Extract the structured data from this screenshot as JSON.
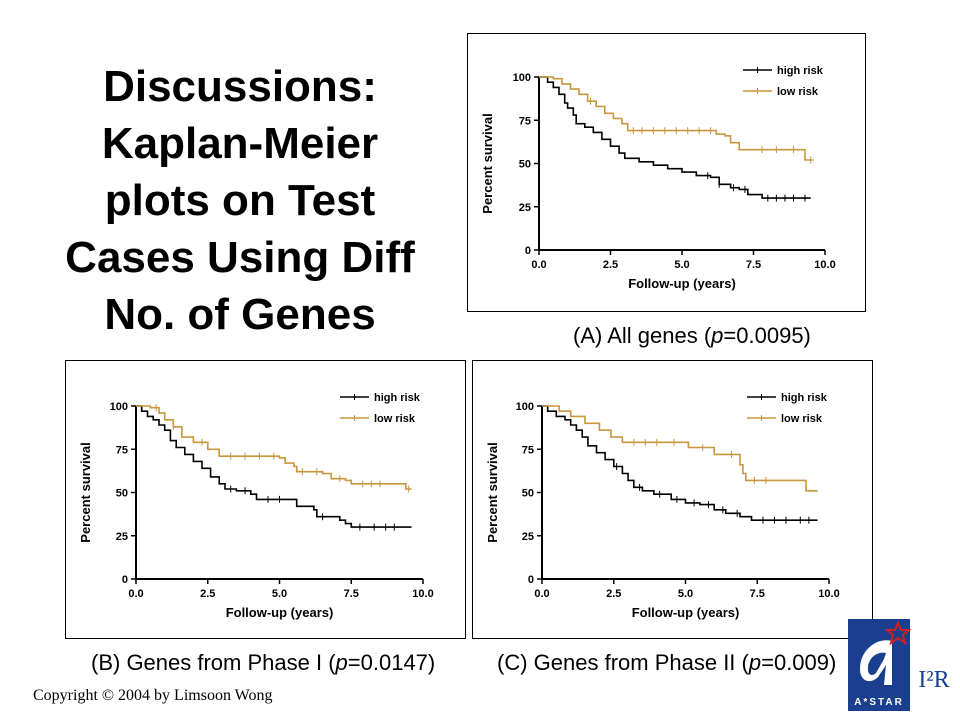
{
  "title_lines": [
    "Discussions:",
    "Kaplan-Meier",
    "plots on Test",
    "Cases Using Diff",
    "No. of Genes"
  ],
  "copyright": "Copyright © 2004 by Limsoon Wong",
  "logo": {
    "wordmark": "A*STAR",
    "institute": "I²R"
  },
  "colors": {
    "high_risk": "#000000",
    "low_risk": "#c8963c",
    "logo_blue": "#1b3f8f",
    "logo_red": "#d02020"
  },
  "chart_data": [
    {
      "type": "line",
      "id": "A",
      "caption": {
        "prefix": "(A) All genes (",
        "p_symbol": "p",
        "p_text": "=0.0095)"
      },
      "xlabel": "Follow-up (years)",
      "ylabel": "Percent survival",
      "xlim": [
        0,
        10
      ],
      "ylim": [
        0,
        100
      ],
      "xticks": [
        "0.0",
        "2.5",
        "5.0",
        "7.5",
        "10.0"
      ],
      "yticks": [
        "0",
        "25",
        "50",
        "75",
        "100"
      ],
      "legend_position": "top-right",
      "series": [
        {
          "name": "high risk",
          "color": "#000000",
          "points": [
            [
              0,
              100
            ],
            [
              0.3,
              97
            ],
            [
              0.5,
              94
            ],
            [
              0.7,
              90
            ],
            [
              0.9,
              85
            ],
            [
              1.0,
              82
            ],
            [
              1.2,
              78
            ],
            [
              1.3,
              73
            ],
            [
              1.6,
              71
            ],
            [
              1.9,
              68
            ],
            [
              2.2,
              64
            ],
            [
              2.5,
              60
            ],
            [
              2.8,
              56
            ],
            [
              3.0,
              53
            ],
            [
              3.5,
              51
            ],
            [
              4.0,
              49
            ],
            [
              4.5,
              47
            ],
            [
              5.0,
              45
            ],
            [
              5.5,
              43
            ],
            [
              6.0,
              42
            ],
            [
              6.3,
              38
            ],
            [
              6.7,
              36
            ],
            [
              7.0,
              35
            ],
            [
              7.3,
              32
            ],
            [
              7.8,
              30
            ],
            [
              9.5,
              30
            ]
          ],
          "censored": [
            5.9,
            6.3,
            6.8,
            7.2,
            8.0,
            8.3,
            8.6,
            8.9,
            9.3
          ]
        },
        {
          "name": "low risk",
          "color": "#c8963c",
          "points": [
            [
              0,
              100
            ],
            [
              0.5,
              99
            ],
            [
              0.8,
              96
            ],
            [
              1.1,
              93
            ],
            [
              1.4,
              90
            ],
            [
              1.7,
              86
            ],
            [
              2.0,
              83
            ],
            [
              2.3,
              79
            ],
            [
              2.6,
              76
            ],
            [
              2.9,
              73
            ],
            [
              3.1,
              69
            ],
            [
              3.5,
              69
            ],
            [
              6.0,
              69
            ],
            [
              6.2,
              67
            ],
            [
              6.5,
              66
            ],
            [
              6.7,
              62
            ],
            [
              7.0,
              58
            ],
            [
              9.2,
              58
            ],
            [
              9.3,
              52
            ],
            [
              9.6,
              52
            ]
          ],
          "censored": [
            1.8,
            3.3,
            3.6,
            4.0,
            4.4,
            4.8,
            5.2,
            5.6,
            6.0,
            7.8,
            8.3,
            8.9,
            9.5
          ]
        }
      ]
    },
    {
      "type": "line",
      "id": "B",
      "caption": {
        "prefix": "(B) Genes from Phase I (",
        "p_symbol": "p",
        "p_text": "=0.0147)"
      },
      "xlabel": "Follow-up (years)",
      "ylabel": "Percent survival",
      "xlim": [
        0,
        10
      ],
      "ylim": [
        0,
        100
      ],
      "xticks": [
        "0.0",
        "2.5",
        "5.0",
        "7.5",
        "10.0"
      ],
      "yticks": [
        "0",
        "25",
        "50",
        "75",
        "100"
      ],
      "legend_position": "top-right",
      "series": [
        {
          "name": "high risk",
          "color": "#000000",
          "points": [
            [
              0,
              100
            ],
            [
              0.2,
              97
            ],
            [
              0.4,
              94
            ],
            [
              0.6,
              92
            ],
            [
              0.8,
              89
            ],
            [
              1.0,
              86
            ],
            [
              1.2,
              80
            ],
            [
              1.4,
              76
            ],
            [
              1.7,
              72
            ],
            [
              2.0,
              68
            ],
            [
              2.3,
              64
            ],
            [
              2.6,
              59
            ],
            [
              2.9,
              55
            ],
            [
              3.1,
              52
            ],
            [
              3.5,
              51
            ],
            [
              4.0,
              49
            ],
            [
              4.2,
              46
            ],
            [
              5.5,
              46
            ],
            [
              5.6,
              42
            ],
            [
              6.2,
              40
            ],
            [
              6.3,
              36
            ],
            [
              6.8,
              36
            ],
            [
              7.1,
              34
            ],
            [
              7.3,
              32
            ],
            [
              7.5,
              30
            ],
            [
              9.6,
              30
            ]
          ],
          "censored": [
            3.3,
            3.8,
            4.6,
            5.0,
            6.5,
            7.8,
            8.3,
            8.7,
            9.0
          ]
        },
        {
          "name": "low risk",
          "color": "#c8963c",
          "points": [
            [
              0,
              100
            ],
            [
              0.5,
              99
            ],
            [
              0.8,
              96
            ],
            [
              1.0,
              92
            ],
            [
              1.3,
              88
            ],
            [
              1.6,
              82
            ],
            [
              2.0,
              79
            ],
            [
              2.5,
              75
            ],
            [
              2.9,
              71
            ],
            [
              3.5,
              71
            ],
            [
              4.5,
              71
            ],
            [
              5.0,
              70
            ],
            [
              5.2,
              67
            ],
            [
              5.5,
              65
            ],
            [
              5.6,
              62
            ],
            [
              6.0,
              62
            ],
            [
              6.5,
              61
            ],
            [
              6.8,
              58
            ],
            [
              7.3,
              57
            ],
            [
              7.5,
              55
            ],
            [
              9.3,
              55
            ],
            [
              9.4,
              52
            ],
            [
              9.6,
              52
            ]
          ],
          "censored": [
            0.7,
            1.3,
            2.3,
            3.3,
            3.8,
            4.3,
            4.8,
            5.8,
            6.3,
            7.1,
            7.9,
            8.2,
            8.5,
            9.5
          ]
        }
      ]
    },
    {
      "type": "line",
      "id": "C",
      "caption": {
        "prefix": "(C) Genes from Phase II (",
        "p_symbol": "p",
        "p_text": "=0.009)"
      },
      "xlabel": "Follow-up (years)",
      "ylabel": "Percent survival",
      "xlim": [
        0,
        10
      ],
      "ylim": [
        0,
        100
      ],
      "xticks": [
        "0.0",
        "2.5",
        "5.0",
        "7.5",
        "10.0"
      ],
      "yticks": [
        "0",
        "25",
        "50",
        "75",
        "100"
      ],
      "legend_position": "top-right",
      "series": [
        {
          "name": "high risk",
          "color": "#000000",
          "points": [
            [
              0,
              100
            ],
            [
              0.2,
              97
            ],
            [
              0.5,
              94
            ],
            [
              0.8,
              92
            ],
            [
              1.0,
              89
            ],
            [
              1.2,
              86
            ],
            [
              1.4,
              82
            ],
            [
              1.6,
              77
            ],
            [
              1.9,
              73
            ],
            [
              2.2,
              69
            ],
            [
              2.5,
              65
            ],
            [
              2.8,
              61
            ],
            [
              3.0,
              57
            ],
            [
              3.2,
              53
            ],
            [
              3.5,
              51
            ],
            [
              3.9,
              49
            ],
            [
              4.5,
              46
            ],
            [
              5.0,
              44
            ],
            [
              5.5,
              43
            ],
            [
              6.0,
              40
            ],
            [
              6.4,
              38
            ],
            [
              6.9,
              36
            ],
            [
              7.3,
              34
            ],
            [
              9.6,
              34
            ]
          ],
          "censored": [
            2.6,
            3.4,
            4.1,
            4.7,
            5.3,
            5.8,
            6.3,
            6.8,
            7.7,
            8.1,
            8.5,
            9.0,
            9.3
          ]
        },
        {
          "name": "low risk",
          "color": "#c8963c",
          "points": [
            [
              0,
              100
            ],
            [
              0.6,
              97
            ],
            [
              1.0,
              94
            ],
            [
              1.5,
              90
            ],
            [
              2.0,
              86
            ],
            [
              2.4,
              82
            ],
            [
              2.8,
              79
            ],
            [
              5.0,
              79
            ],
            [
              5.1,
              76
            ],
            [
              5.8,
              76
            ],
            [
              6.0,
              72
            ],
            [
              6.8,
              72
            ],
            [
              6.9,
              66
            ],
            [
              7.0,
              61
            ],
            [
              7.1,
              57
            ],
            [
              9.0,
              57
            ],
            [
              9.2,
              51
            ],
            [
              9.6,
              51
            ]
          ],
          "censored": [
            3.2,
            3.6,
            4.0,
            4.6,
            5.6,
            6.6,
            7.4,
            7.8
          ]
        }
      ]
    }
  ]
}
